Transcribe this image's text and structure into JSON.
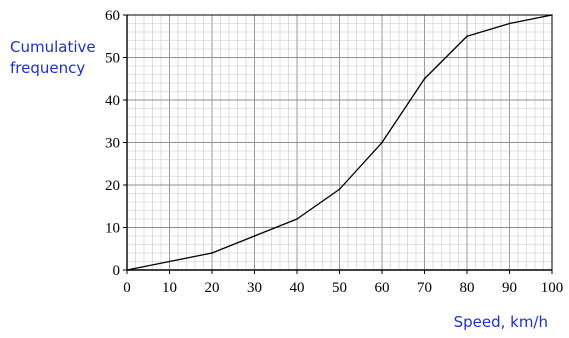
{
  "chart_data": {
    "type": "line",
    "title": "",
    "xlabel": "Speed, km/h",
    "ylabel_lines": [
      "Cumulative",
      "frequency"
    ],
    "x": [
      0,
      10,
      20,
      30,
      40,
      50,
      60,
      70,
      80,
      90,
      100
    ],
    "series": [
      {
        "values": [
          0,
          2,
          4,
          8,
          12,
          19,
          30,
          45,
          55,
          58,
          60
        ]
      }
    ],
    "xlim": [
      0,
      100
    ],
    "ylim": [
      0,
      60
    ],
    "xticks": [
      0,
      10,
      20,
      30,
      40,
      50,
      60,
      70,
      80,
      90,
      100
    ],
    "yticks": [
      0,
      10,
      20,
      30,
      40,
      50,
      60
    ],
    "grid": true,
    "grid_minor_step": 2,
    "colors": {
      "line": "#000000",
      "axis_title": "#1a2fd6",
      "grid_minor": "#c8c8c8",
      "grid_major": "#8f8f8f"
    }
  }
}
